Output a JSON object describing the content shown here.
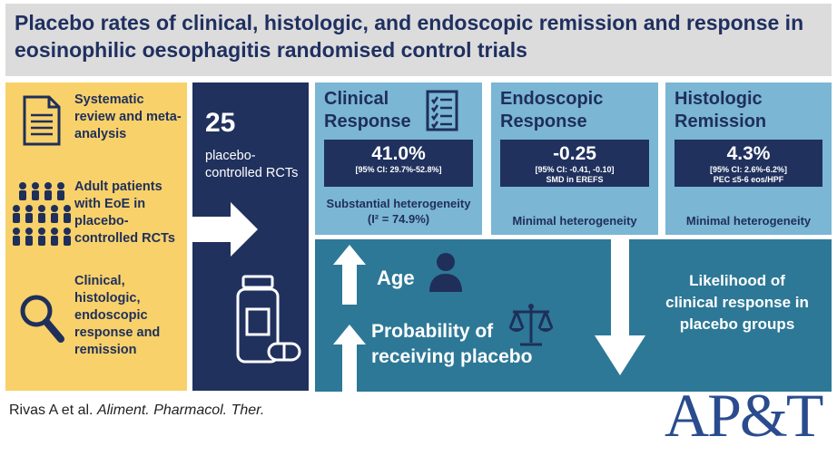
{
  "title": "Placebo rates of clinical, histologic, and endoscopic remission and response in eosinophilic oesophagitis randomised control trials",
  "left_panel": {
    "items": [
      {
        "icon": "document-icon",
        "text": "Systematic review and meta-analysis"
      },
      {
        "icon": "people-group-icon",
        "text": "Adult patients with EoE in placebo-controlled RCTs"
      },
      {
        "icon": "magnifier-icon",
        "text": "Clinical, histologic, endoscopic response and remission"
      }
    ]
  },
  "rct_panel": {
    "count": "25",
    "label": "placebo-controlled RCTs"
  },
  "cards": [
    {
      "title_line1": "Clinical",
      "title_line2": "Response",
      "value": "41.0%",
      "ci": "[95% CI: 29.7%-52.8%]",
      "detail": "",
      "heterogeneity": "Substantial heterogeneity",
      "i2": "(I² = 74.9%)"
    },
    {
      "title_line1": "Endoscopic",
      "title_line2": "Response",
      "value": "-0.25",
      "ci": "[95% CI: -0.41, -0.10]",
      "detail": "SMD in EREFS",
      "heterogeneity": "Minimal heterogeneity"
    },
    {
      "title_line1": "Histologic",
      "title_line2": "Remission",
      "value": "4.3%",
      "ci": "[95% CI: 2.6%-6.2%]",
      "detail": "PEC ≤5-6 eos/HPF",
      "heterogeneity": "Minimal heterogeneity"
    }
  ],
  "predictors": {
    "age": "Age",
    "probability_line1": "Probability of",
    "probability_line2": "receiving placebo"
  },
  "outcome": {
    "line1": "Likelihood of",
    "line2": "clinical response in",
    "line3": "placebo groups"
  },
  "citation": {
    "authors": "Rivas A et al.",
    "journal": "Aliment. Pharmacol. Ther."
  },
  "logo": "AP&T",
  "colors": {
    "navy": "#20315e",
    "yellow": "#f8d16a",
    "light_blue": "#7bb6d4",
    "teal": "#2d7896",
    "grey": "#dcdcdc"
  }
}
